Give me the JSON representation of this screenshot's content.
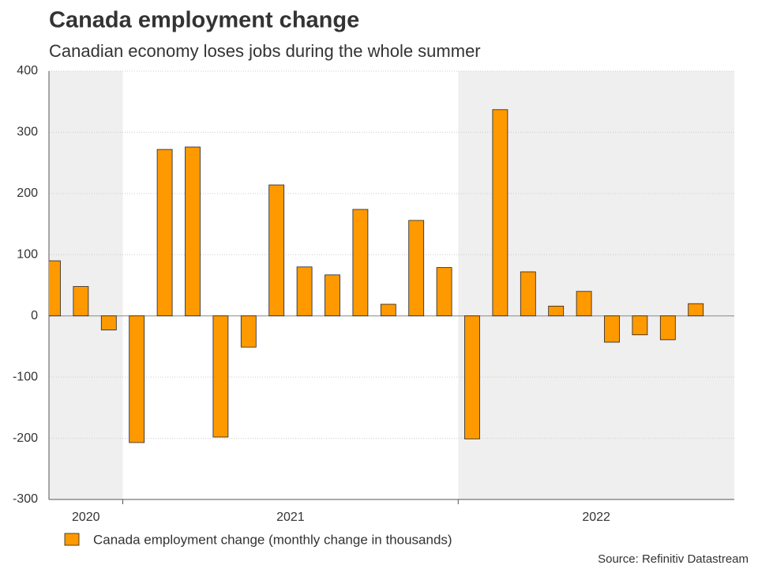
{
  "chart_data": {
    "type": "bar",
    "title": "Canada employment change",
    "subtitle": "Canadian economy loses jobs during the whole summer",
    "categories": [
      null,
      null,
      null,
      null,
      null,
      null,
      null,
      null,
      null,
      null,
      null,
      null,
      null,
      null,
      null,
      null,
      null,
      null,
      null,
      null,
      null,
      null,
      null,
      null
    ],
    "x_groups": [
      {
        "label": "2020",
        "count": 3,
        "shaded": true
      },
      {
        "label": "2021",
        "count": 12,
        "shaded": false
      },
      {
        "label": "2022",
        "count": 9,
        "shaded": true
      }
    ],
    "series": [
      {
        "name": "Canada employment change (monthly change in thousands)",
        "color": "#ff9900",
        "values": [
          90,
          48,
          -23,
          -207,
          272,
          276,
          -198,
          -51,
          214,
          80,
          67,
          174,
          19,
          156,
          79,
          -201,
          337,
          72,
          16,
          40,
          -43,
          -31,
          -39,
          20
        ]
      }
    ],
    "ylim": [
      -300,
      400
    ],
    "yticks": [
      -300,
      -200,
      -100,
      0,
      100,
      200,
      300,
      400
    ],
    "grid": true,
    "source": "Source: Refinitiv Datastream"
  }
}
